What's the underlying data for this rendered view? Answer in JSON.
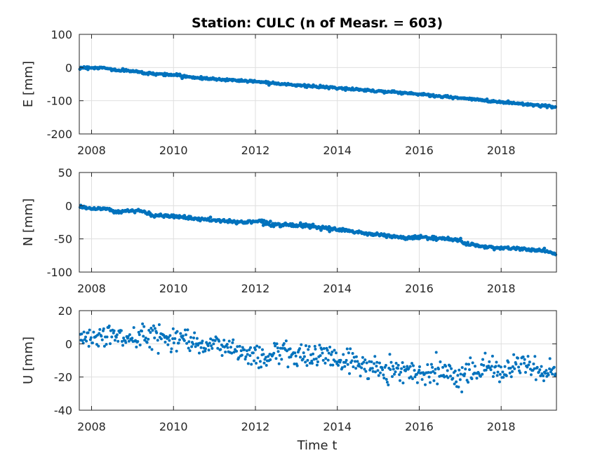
{
  "chart_data": {
    "type": "scatter",
    "title": "Station: CULC (n of Measr. = 603)",
    "xlabel": "Time t",
    "xlim": [
      2007.7,
      2019.35
    ],
    "x_ticks": [
      "2008",
      "2010",
      "2012",
      "2014",
      "2016",
      "2018"
    ],
    "x_tick_values": [
      2008,
      2010,
      2012,
      2014,
      2016,
      2018
    ],
    "marker_color": "#0072BD",
    "grid": true,
    "panels": [
      {
        "ylabel": "E [mm]",
        "ylim": [
          -200,
          100
        ],
        "y_ticks": [
          "100",
          "0",
          "-100",
          "-200"
        ],
        "y_tick_values": [
          100,
          0,
          -100,
          -200
        ],
        "trend": [
          [
            2007.7,
            0
          ],
          [
            2008.3,
            -1
          ],
          [
            2008.6,
            -8
          ],
          [
            2009.0,
            -10
          ],
          [
            2009.3,
            -17
          ],
          [
            2010.0,
            -22
          ],
          [
            2010.5,
            -30
          ],
          [
            2011.0,
            -35
          ],
          [
            2011.5,
            -38
          ],
          [
            2012.0,
            -42
          ],
          [
            2012.5,
            -47
          ],
          [
            2013.0,
            -53
          ],
          [
            2013.5,
            -58
          ],
          [
            2014.0,
            -62
          ],
          [
            2014.5,
            -66
          ],
          [
            2015.0,
            -71
          ],
          [
            2015.5,
            -75
          ],
          [
            2016.0,
            -80
          ],
          [
            2016.5,
            -87
          ],
          [
            2017.0,
            -92
          ],
          [
            2017.5,
            -98
          ],
          [
            2018.0,
            -104
          ],
          [
            2018.5,
            -109
          ],
          [
            2019.0,
            -115
          ],
          [
            2019.35,
            -120
          ]
        ],
        "noise": 1.8
      },
      {
        "ylabel": "N [mm]",
        "ylim": [
          -100,
          50
        ],
        "y_ticks": [
          "50",
          "0",
          "-50",
          "-100"
        ],
        "y_tick_values": [
          50,
          0,
          -50,
          -100
        ],
        "trend": [
          [
            2007.7,
            0
          ],
          [
            2007.95,
            -4
          ],
          [
            2008.4,
            -5
          ],
          [
            2008.6,
            -10
          ],
          [
            2008.9,
            -7
          ],
          [
            2009.3,
            -9
          ],
          [
            2009.5,
            -15
          ],
          [
            2010.0,
            -15
          ],
          [
            2010.4,
            -19
          ],
          [
            2010.8,
            -21
          ],
          [
            2011.2,
            -23
          ],
          [
            2011.7,
            -25
          ],
          [
            2012.1,
            -23
          ],
          [
            2012.4,
            -28
          ],
          [
            2013.0,
            -29
          ],
          [
            2013.4,
            -32
          ],
          [
            2013.8,
            -35
          ],
          [
            2014.2,
            -37
          ],
          [
            2014.7,
            -42
          ],
          [
            2015.2,
            -45
          ],
          [
            2015.7,
            -49
          ],
          [
            2016.1,
            -47
          ],
          [
            2016.4,
            -50
          ],
          [
            2017.0,
            -51
          ],
          [
            2017.1,
            -57
          ],
          [
            2017.5,
            -61
          ],
          [
            2018.0,
            -64
          ],
          [
            2018.5,
            -65
          ],
          [
            2019.0,
            -68
          ],
          [
            2019.35,
            -72
          ]
        ],
        "noise": 1.3
      },
      {
        "ylabel": "U [mm]",
        "ylim": [
          -40,
          20
        ],
        "y_ticks": [
          "20",
          "0",
          "-20",
          "-40"
        ],
        "y_tick_values": [
          20,
          0,
          -20,
          -40
        ],
        "trend": [
          [
            2007.7,
            2
          ],
          [
            2008.2,
            4
          ],
          [
            2008.5,
            6
          ],
          [
            2009.0,
            2
          ],
          [
            2009.5,
            6
          ],
          [
            2010.0,
            3
          ],
          [
            2010.5,
            4
          ],
          [
            2010.8,
            -2
          ],
          [
            2011.3,
            -1
          ],
          [
            2011.7,
            -5
          ],
          [
            2012.0,
            -8
          ],
          [
            2012.4,
            -7
          ],
          [
            2012.7,
            -3
          ],
          [
            2013.0,
            -8
          ],
          [
            2013.5,
            -6
          ],
          [
            2014.0,
            -9
          ],
          [
            2014.5,
            -12
          ],
          [
            2015.0,
            -15
          ],
          [
            2015.5,
            -15
          ],
          [
            2016.0,
            -18
          ],
          [
            2016.5,
            -16
          ],
          [
            2017.0,
            -18
          ],
          [
            2017.5,
            -14
          ],
          [
            2018.0,
            -17
          ],
          [
            2018.5,
            -12
          ],
          [
            2019.0,
            -18
          ],
          [
            2019.35,
            -16
          ]
        ],
        "noise": 3.5
      }
    ]
  }
}
